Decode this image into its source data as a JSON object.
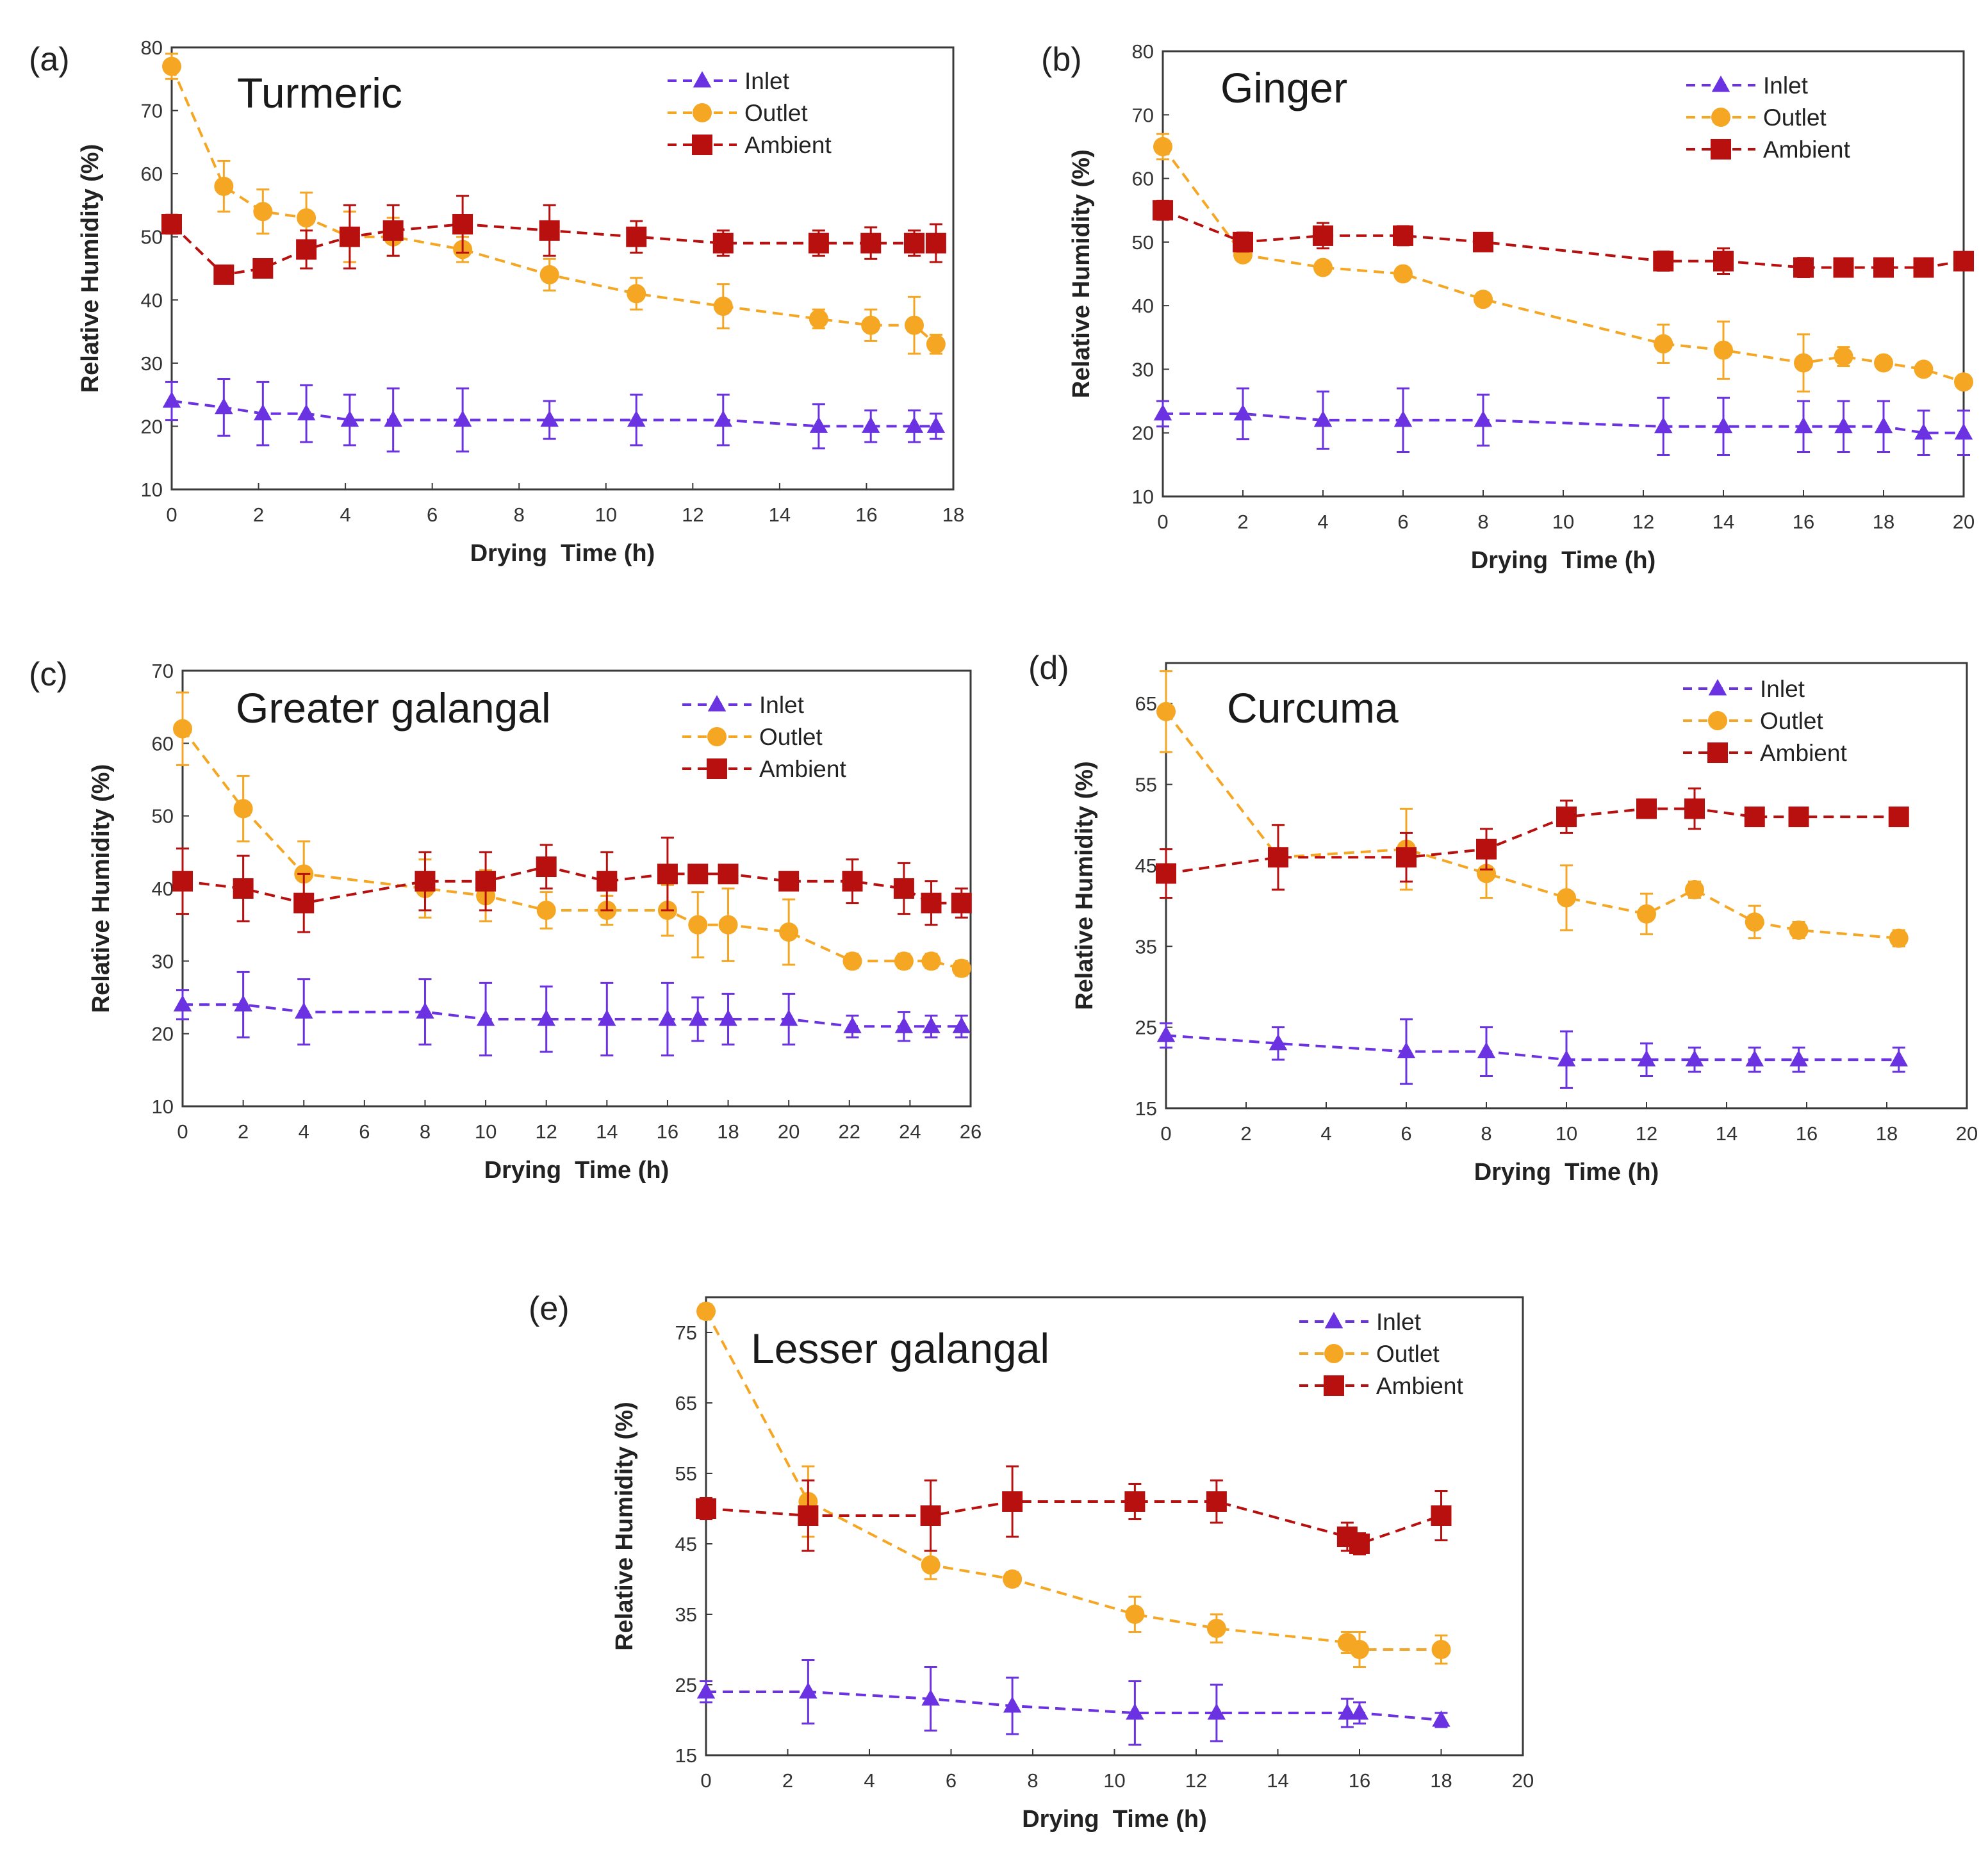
{
  "figure": {
    "colors": {
      "Inlet": "#6a32e0",
      "Outlet": "#f5a623",
      "Ambient": "#b80f0f"
    },
    "markers": {
      "Inlet": "triangle",
      "Outlet": "circle",
      "Ambient": "square"
    }
  },
  "chart_data": [
    {
      "type": "line",
      "panel": "(a)",
      "title": "Turmeric",
      "xlabel": "Drying  Time (h)",
      "ylabel": "Relative Humidity (%)",
      "xlim": [
        0,
        18
      ],
      "ylim": [
        10,
        80
      ],
      "xticks": [
        0,
        2,
        4,
        6,
        8,
        10,
        12,
        14,
        16,
        18
      ],
      "yticks": [
        10,
        20,
        30,
        40,
        50,
        60,
        70,
        80
      ],
      "grid": false,
      "legend": "top-right",
      "series": [
        {
          "name": "Inlet",
          "x": [
            0,
            1.2,
            2.1,
            3.1,
            4.1,
            5.1,
            6.7,
            8.7,
            10.7,
            12.7,
            14.9,
            16.1,
            17.1,
            17.6
          ],
          "y": [
            24,
            23,
            22,
            22,
            21,
            21,
            21,
            21,
            21,
            21,
            20,
            20,
            20,
            20
          ],
          "err": [
            3,
            4.5,
            5,
            4.5,
            4,
            5,
            5,
            3,
            4,
            4,
            3.5,
            2.5,
            2.5,
            2
          ]
        },
        {
          "name": "Outlet",
          "x": [
            0,
            1.2,
            2.1,
            3.1,
            4.1,
            5.1,
            6.7,
            8.7,
            10.7,
            12.7,
            14.9,
            16.1,
            17.1,
            17.6
          ],
          "y": [
            77,
            58,
            54,
            53,
            50,
            50,
            48,
            44,
            41,
            39,
            37,
            36,
            36,
            33
          ],
          "err": [
            2,
            4,
            3.5,
            4,
            4,
            3,
            2,
            2.5,
            2.5,
            3.5,
            1.5,
            2.5,
            4.5,
            1.5
          ]
        },
        {
          "name": "Ambient",
          "x": [
            0,
            1.2,
            2.1,
            3.1,
            4.1,
            5.1,
            6.7,
            8.7,
            10.7,
            12.7,
            14.9,
            16.1,
            17.1,
            17.6
          ],
          "y": [
            52,
            44,
            45,
            48,
            50,
            51,
            52,
            51,
            50,
            49,
            49,
            49,
            49,
            49
          ],
          "err": [
            1.5,
            1,
            1,
            3,
            5,
            4,
            4.5,
            4,
            2.5,
            2,
            2,
            2.5,
            2,
            3
          ]
        }
      ]
    },
    {
      "type": "line",
      "panel": "(b)",
      "title": "Ginger",
      "xlabel": "Drying  Time (h)",
      "ylabel": "Relative Humidity (%)",
      "xlim": [
        0,
        20
      ],
      "ylim": [
        10,
        80
      ],
      "xticks": [
        0,
        2,
        4,
        6,
        8,
        10,
        12,
        14,
        16,
        18,
        20
      ],
      "yticks": [
        10,
        20,
        30,
        40,
        50,
        60,
        70,
        80
      ],
      "grid": false,
      "legend": "top-right",
      "series": [
        {
          "name": "Inlet",
          "x": [
            0,
            2,
            4,
            6,
            8,
            12.5,
            14,
            16,
            17,
            18,
            19,
            20
          ],
          "y": [
            23,
            23,
            22,
            22,
            22,
            21,
            21,
            21,
            21,
            21,
            20,
            20
          ],
          "err": [
            2,
            4,
            4.5,
            5,
            4,
            4.5,
            4.5,
            4,
            4,
            4,
            3.5,
            3.5
          ]
        },
        {
          "name": "Outlet",
          "x": [
            0,
            2,
            4,
            6,
            8,
            12.5,
            14,
            16,
            17,
            18,
            19,
            20
          ],
          "y": [
            65,
            48,
            46,
            45,
            41,
            34,
            33,
            31,
            32,
            31,
            30,
            28
          ],
          "err": [
            2,
            1,
            1,
            1,
            1,
            3,
            4.5,
            4.5,
            1.5,
            1,
            1,
            1
          ]
        },
        {
          "name": "Ambient",
          "x": [
            0,
            2,
            4,
            6,
            8,
            12.5,
            14,
            16,
            17,
            18,
            19,
            20
          ],
          "y": [
            55,
            50,
            51,
            51,
            50,
            47,
            47,
            46,
            46,
            46,
            46,
            47
          ],
          "err": [
            1.5,
            1.5,
            2,
            1.5,
            1,
            1.5,
            2,
            1.5,
            1,
            1,
            1,
            1
          ]
        }
      ]
    },
    {
      "type": "line",
      "panel": "(c)",
      "title": "Greater galangal",
      "xlabel": "Drying  Time (h)",
      "ylabel": "Relative Humidity (%)",
      "xlim": [
        0,
        26
      ],
      "ylim": [
        10,
        70
      ],
      "xticks": [
        0,
        2,
        4,
        6,
        8,
        10,
        12,
        14,
        16,
        18,
        20,
        22,
        24,
        26
      ],
      "yticks": [
        10,
        20,
        30,
        40,
        50,
        60,
        70
      ],
      "grid": false,
      "legend": "top-right",
      "series": [
        {
          "name": "Inlet",
          "x": [
            0,
            2,
            4,
            8,
            10,
            12,
            14,
            16,
            17,
            18,
            20,
            22.1,
            23.8,
            24.7,
            25.7
          ],
          "y": [
            24,
            24,
            23,
            23,
            22,
            22,
            22,
            22,
            22,
            22,
            22,
            21,
            21,
            21,
            21
          ],
          "err": [
            2,
            4.5,
            4.5,
            4.5,
            5,
            4.5,
            5,
            5,
            3,
            3.5,
            3.5,
            1.5,
            2,
            1.5,
            1.5
          ]
        },
        {
          "name": "Outlet",
          "x": [
            0,
            2,
            4,
            8,
            10,
            12,
            14,
            16,
            17,
            18,
            20,
            22.1,
            23.8,
            24.7,
            25.7
          ],
          "y": [
            62,
            51,
            42,
            40,
            39,
            37,
            37,
            37,
            35,
            35,
            34,
            30,
            30,
            30,
            29
          ],
          "err": [
            5,
            4.5,
            4.5,
            4,
            3.5,
            2.5,
            2,
            3.5,
            4.5,
            5,
            4.5,
            1,
            1,
            1,
            1
          ]
        },
        {
          "name": "Ambient",
          "x": [
            0,
            2,
            4,
            8,
            10,
            12,
            14,
            16,
            17,
            18,
            20,
            22.1,
            23.8,
            24.7,
            25.7
          ],
          "y": [
            41,
            40,
            38,
            41,
            41,
            43,
            41,
            42,
            42,
            42,
            41,
            41,
            40,
            38,
            38
          ],
          "err": [
            4.5,
            4.5,
            4,
            4,
            4,
            3,
            4,
            5,
            1,
            1,
            1,
            3,
            3.5,
            3,
            2
          ]
        }
      ]
    },
    {
      "type": "line",
      "panel": "(d)",
      "title": "Curcuma",
      "xlabel": "Drying  Time (h)",
      "ylabel": "Relative Humidity (%)",
      "xlim": [
        0,
        20
      ],
      "ylim": [
        15,
        70
      ],
      "xticks": [
        0,
        2,
        4,
        6,
        8,
        10,
        12,
        14,
        16,
        18,
        20
      ],
      "yticks": [
        15,
        25,
        35,
        45,
        55,
        65
      ],
      "grid": false,
      "legend": "top-right",
      "series": [
        {
          "name": "Inlet",
          "x": [
            0,
            2.8,
            6,
            8,
            10,
            12,
            13.2,
            14.7,
            15.8,
            18.3
          ],
          "y": [
            24,
            23,
            22,
            22,
            21,
            21,
            21,
            21,
            21,
            21
          ],
          "err": [
            1.5,
            2,
            4,
            3,
            3.5,
            2,
            1.5,
            1.5,
            1.5,
            1.5
          ]
        },
        {
          "name": "Outlet",
          "x": [
            0,
            2.8,
            6,
            8,
            10,
            12,
            13.2,
            14.7,
            15.8,
            18.3
          ],
          "y": [
            64,
            46,
            47,
            44,
            41,
            39,
            42,
            38,
            37,
            36
          ],
          "err": [
            5,
            4,
            5,
            3,
            4,
            2.5,
            1,
            2,
            1,
            1
          ]
        },
        {
          "name": "Ambient",
          "x": [
            0,
            2.8,
            6,
            8,
            10,
            12,
            13.2,
            14.7,
            15.8,
            18.3
          ],
          "y": [
            44,
            46,
            46,
            47,
            51,
            52,
            52,
            51,
            51,
            51
          ],
          "err": [
            3,
            4,
            3,
            2.5,
            2,
            1,
            2.5,
            1,
            1,
            1
          ]
        }
      ]
    },
    {
      "type": "line",
      "panel": "(e)",
      "title": "Lesser galangal",
      "xlabel": "Drying  Time (h)",
      "ylabel": "Relative Humidity (%)",
      "xlim": [
        0,
        20
      ],
      "ylim": [
        15,
        80
      ],
      "xticks": [
        0,
        2,
        4,
        6,
        8,
        10,
        12,
        14,
        16,
        18,
        20
      ],
      "yticks": [
        15,
        25,
        35,
        45,
        55,
        65,
        75
      ],
      "grid": false,
      "legend": "top-right",
      "series": [
        {
          "name": "Inlet",
          "x": [
            0,
            2.5,
            5.5,
            7.5,
            10.5,
            12.5,
            15.7,
            16,
            18
          ],
          "y": [
            24,
            24,
            23,
            22,
            21,
            21,
            21,
            21,
            20
          ],
          "err": [
            1.5,
            4.5,
            4.5,
            4,
            4.5,
            4,
            2,
            1.5,
            1
          ]
        },
        {
          "name": "Outlet",
          "x": [
            0,
            2.5,
            5.5,
            7.5,
            10.5,
            12.5,
            15.7,
            16,
            18
          ],
          "y": [
            78,
            51,
            42,
            40,
            35,
            33,
            31,
            30,
            30
          ],
          "err": [
            1,
            5,
            2,
            1,
            2.5,
            2,
            1.5,
            2.5,
            2
          ]
        },
        {
          "name": "Ambient",
          "x": [
            0,
            2.5,
            5.5,
            7.5,
            10.5,
            12.5,
            15.7,
            16,
            18
          ],
          "y": [
            50,
            49,
            49,
            51,
            51,
            51,
            46,
            45,
            49
          ],
          "err": [
            1.5,
            5,
            5,
            5,
            2.5,
            3,
            2,
            1.5,
            3.5
          ]
        }
      ]
    }
  ]
}
